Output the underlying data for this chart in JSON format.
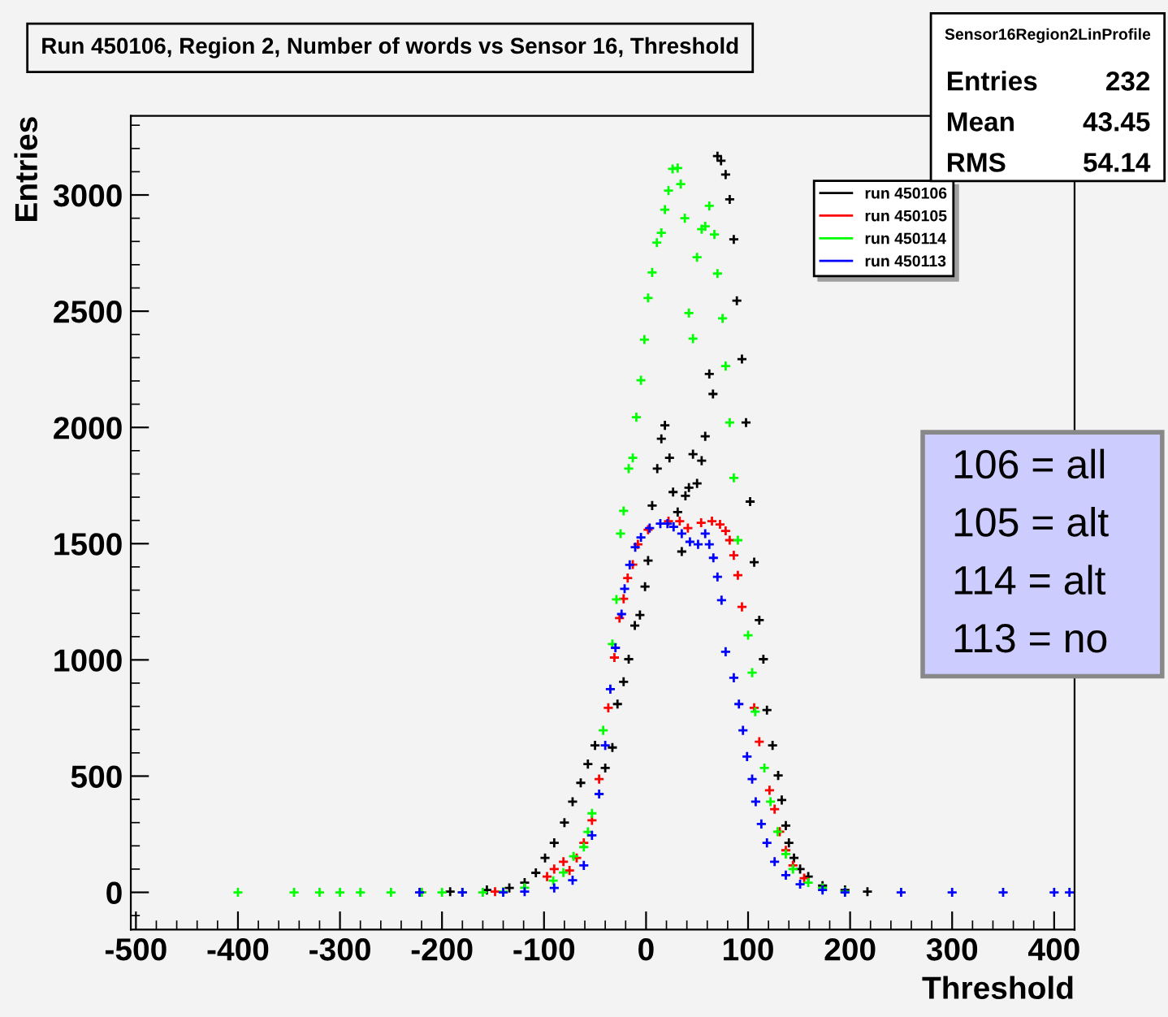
{
  "chart_data": {
    "type": "scatter",
    "title": "Run 450106, Region 2, Number of words vs Sensor 16, Threshold",
    "xlabel": "Threshold",
    "ylabel": "Entries",
    "xlim": [
      -505,
      420
    ],
    "ylim": [
      -160,
      3340
    ],
    "xticks": [
      -500,
      -400,
      -300,
      -200,
      -100,
      0,
      100,
      200,
      300,
      400
    ],
    "yticks": [
      0,
      500,
      1000,
      1500,
      2000,
      2500,
      3000
    ],
    "grid": false,
    "legend": "top right",
    "marker": "cross",
    "annotations": [
      "Sensor16Region2LinProfile",
      "Entries 232",
      "Mean 43.45",
      "RMS 54.14",
      "106 = all",
      "105 = alt",
      "114 = alt",
      "113 = no"
    ],
    "series": [
      {
        "name": "run 450106",
        "color": "#000000",
        "x": [
          -192,
          -156,
          -134,
          -119,
          -108,
          -99,
          -90,
          -80,
          -72,
          -64,
          -57,
          -50,
          -40,
          -33,
          -28,
          -22,
          -17,
          -11,
          -6,
          -1,
          2,
          6,
          11,
          15,
          18.5,
          23,
          26.5,
          31,
          35,
          38.6,
          42,
          46,
          50,
          54.5,
          58,
          62,
          65.6,
          70,
          73.5,
          78,
          82,
          86,
          89,
          94,
          98,
          102,
          106,
          111,
          115,
          118.5,
          124,
          129.5,
          133,
          137,
          140,
          145,
          151,
          159,
          173,
          195,
          217
        ],
        "values": [
          3,
          10,
          19,
          42,
          84,
          148,
          213,
          300,
          390,
          471,
          552,
          632,
          535,
          623,
          810,
          906,
          1003,
          1148,
          1193,
          1315,
          1427,
          1664,
          1823,
          1951,
          2009,
          1869,
          1722,
          1636,
          1466,
          1706,
          1741,
          1885,
          1759,
          1857,
          1962,
          2230,
          2144,
          3167,
          3147,
          3088,
          2981,
          2809,
          2545,
          2294,
          2021,
          1681,
          1420,
          1171,
          1003,
          784,
          632,
          503,
          397,
          287,
          213,
          148,
          100,
          68,
          29,
          10,
          3
        ]
      },
      {
        "name": "run 450105",
        "color": "#ff0000",
        "x": [
          -220,
          -180,
          -148,
          -119,
          -97,
          -90,
          -81,
          -75,
          -68,
          -61,
          -53,
          -46,
          -37,
          -31,
          -26,
          -22,
          -18,
          -13,
          -8,
          2,
          12,
          22,
          33,
          41,
          54,
          64.6,
          72.5,
          78,
          82,
          86,
          90,
          94,
          106,
          111,
          115,
          121,
          126,
          131,
          137,
          144,
          155
        ],
        "values": [
          0,
          0,
          3,
          null,
          68,
          100,
          132,
          94,
          148,
          213,
          310,
          487,
          794,
          1010,
          1180,
          1263,
          1352,
          1410,
          1497,
          1560,
          null,
          1597,
          1597,
          1567,
          1590,
          1597,
          1583,
          1555,
          1515,
          1450,
          1364,
          1228,
          794,
          648,
          null,
          439,
          358,
          261,
          181,
          116,
          61
        ]
      },
      {
        "name": "run 450114",
        "color": "#00ff00",
        "x": [
          -400,
          -345,
          -320,
          -300,
          -280,
          -250,
          -220,
          -200,
          -180,
          -160,
          -140,
          -119,
          -91,
          -81,
          -71,
          -61,
          -57,
          -53,
          -42,
          -33,
          -29,
          -25,
          -22,
          -17,
          -13,
          -9.5,
          -5,
          -1.6,
          2,
          6,
          10.6,
          15,
          18.5,
          22,
          26,
          31,
          34,
          38,
          42,
          46,
          50,
          54.5,
          58,
          62,
          67,
          70,
          75,
          78,
          82,
          86,
          90,
          100,
          104,
          107,
          116,
          122,
          129,
          137,
          144,
          159,
          173,
          195
        ],
        "values": [
          0,
          0,
          0,
          0,
          0,
          0,
          0,
          0,
          0,
          0,
          3,
          20,
          50,
          85,
          155,
          195,
          260,
          340,
          697,
          1068,
          1260,
          1543,
          1641,
          1823,
          1869,
          2044,
          2203,
          2378,
          2557,
          2667,
          2795,
          2837,
          2937,
          3019,
          3112,
          3116,
          3047,
          2900,
          2492,
          2382,
          2732,
          2853,
          2865,
          2953,
          2830,
          2662,
          2469,
          2264,
          2021,
          1783,
          1515,
          1106,
          945,
          777,
          535,
          390,
          261,
          165,
          100,
          42,
          19,
          3
        ]
      },
      {
        "name": "run 450113",
        "color": "#0000ff",
        "x": [
          -222,
          -180,
          -140,
          -119,
          -90,
          -72,
          -61,
          -53,
          -46,
          -40,
          -35,
          -30,
          -24,
          -21,
          -16,
          -10.6,
          -5,
          3.5,
          14,
          21,
          27,
          35,
          43,
          51,
          58,
          62,
          66,
          70,
          74,
          78,
          86,
          91,
          95,
          99,
          104,
          107.5,
          113,
          118.5,
          126,
          137,
          151,
          173,
          195,
          250,
          300,
          350,
          400,
          415
        ],
        "values": [
          0,
          0,
          0,
          3,
          19,
          52,
          116,
          245,
          423,
          632,
          874,
          1052,
          1197,
          1306,
          1409,
          1485,
          1527,
          1567,
          1586,
          1586,
          1572,
          1543,
          1508,
          1497,
          1543,
          1497,
          1439,
          1357,
          1257,
          1035,
          923,
          810,
          697,
          584,
          487,
          390,
          294,
          213,
          132,
          74,
          35,
          10,
          0,
          0,
          0,
          0,
          0,
          0
        ]
      }
    ]
  }
}
